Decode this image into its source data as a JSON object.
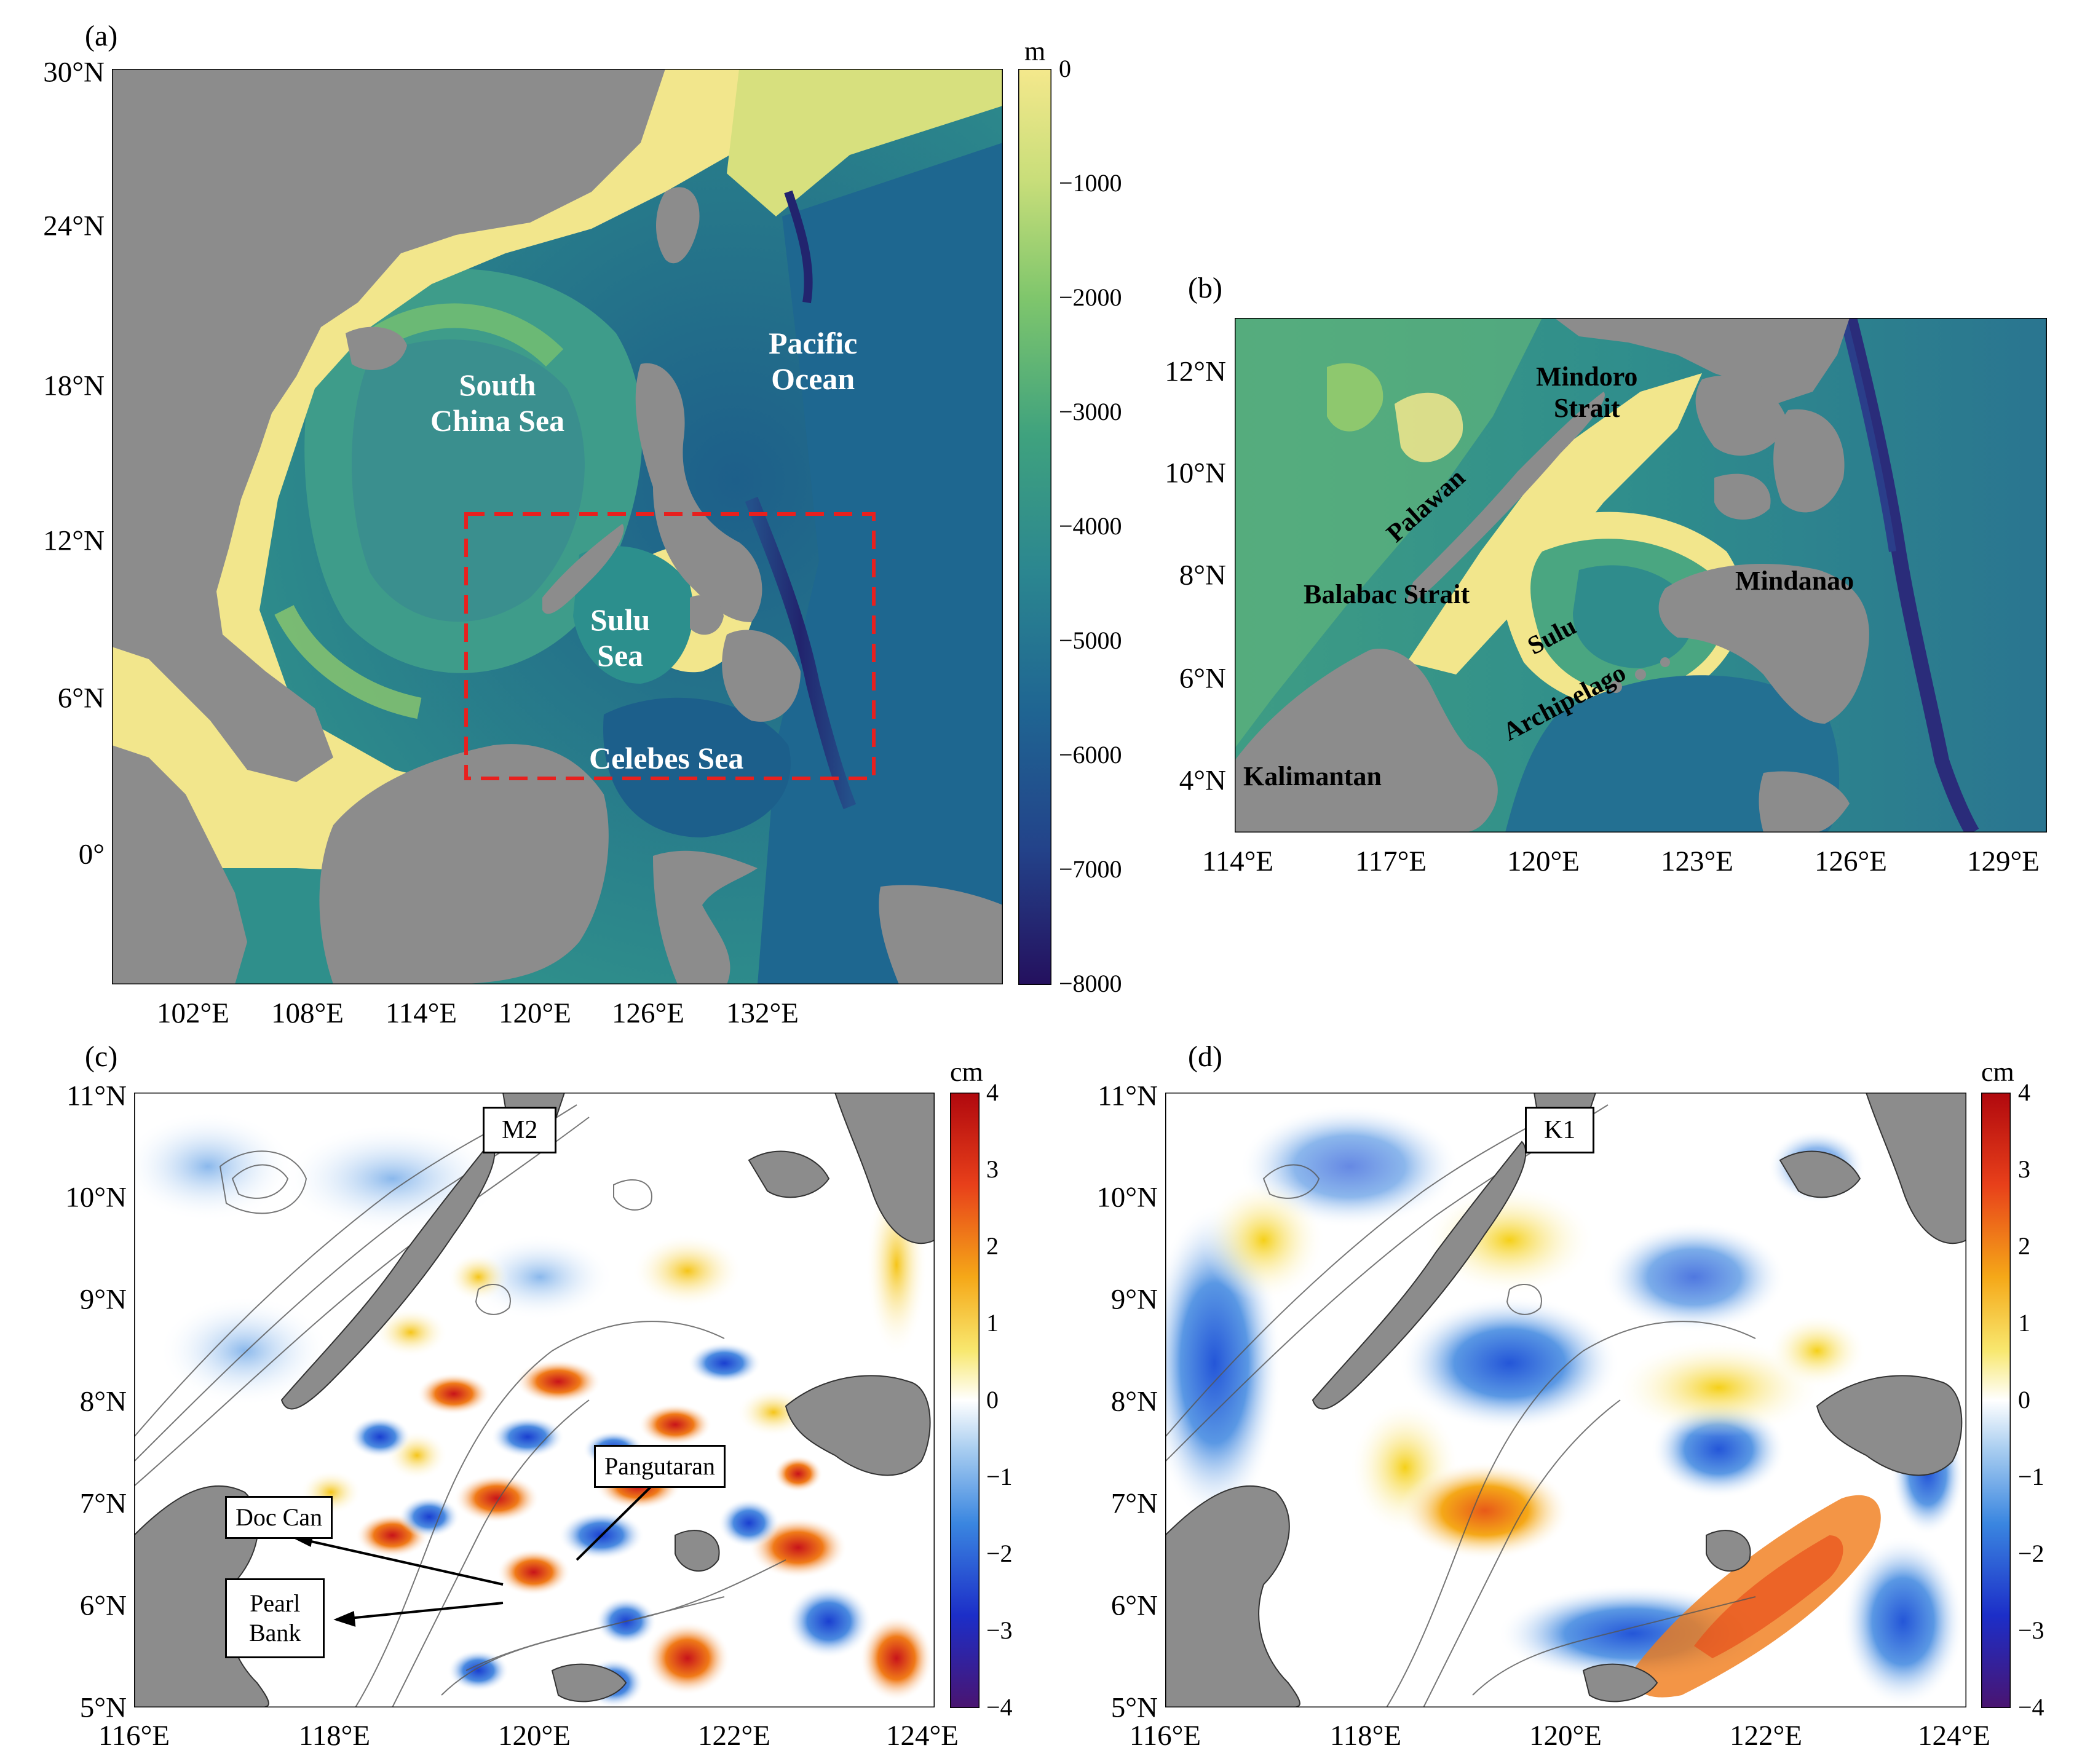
{
  "panels": {
    "a": {
      "label": "(a)",
      "lat_ticks": [
        "30°N",
        "24°N",
        "18°N",
        "12°N",
        "6°N",
        "0°"
      ],
      "lon_ticks": [
        "102°E",
        "108°E",
        "114°E",
        "120°E",
        "126°E",
        "132°E"
      ],
      "colorbar": {
        "unit": "m",
        "ticks": [
          "0",
          "−1000",
          "−2000",
          "−3000",
          "−4000",
          "−5000",
          "−6000",
          "−7000",
          "−8000"
        ]
      },
      "labels": {
        "scs": "South\nChina Sea",
        "pacific": "Pacific\nOcean",
        "sulu": "Sulu\nSea",
        "celebes": "Celebes Sea"
      }
    },
    "b": {
      "label": "(b)",
      "lat_ticks": [
        "12°N",
        "10°N",
        "8°N",
        "6°N",
        "4°N"
      ],
      "lon_ticks": [
        "114°E",
        "117°E",
        "120°E",
        "123°E",
        "126°E",
        "129°E"
      ],
      "labels": {
        "mindoro": "Mindoro\nStrait",
        "palawan": "Palawan",
        "balabac": "Balabac Strait",
        "mindanao": "Mindanao",
        "sulu_arch_1": "Sulu",
        "sulu_arch_2": "Archipelago",
        "kalimantan": "Kalimantan"
      }
    },
    "c": {
      "label": "(c)",
      "lat_ticks": [
        "11°N",
        "10°N",
        "9°N",
        "8°N",
        "7°N",
        "6°N",
        "5°N"
      ],
      "lon_ticks": [
        "116°E",
        "118°E",
        "120°E",
        "122°E",
        "124°E"
      ],
      "colorbar": {
        "unit": "cm",
        "ticks": [
          "4",
          "3",
          "2",
          "1",
          "0",
          "−1",
          "−2",
          "−3",
          "−4"
        ]
      },
      "constituent": "M2",
      "callouts": {
        "pangutaran": "Pangutaran",
        "doc_can": "Doc Can",
        "pearl_bank": "Pearl\nBank"
      }
    },
    "d": {
      "label": "(d)",
      "lat_ticks": [
        "11°N",
        "10°N",
        "9°N",
        "8°N",
        "7°N",
        "6°N",
        "5°N"
      ],
      "lon_ticks": [
        "116°E",
        "118°E",
        "120°E",
        "122°E",
        "124°E"
      ],
      "colorbar": {
        "unit": "cm",
        "ticks": [
          "4",
          "3",
          "2",
          "1",
          "0",
          "−1",
          "−2",
          "−3",
          "−4"
        ]
      },
      "constituent": "K1"
    }
  },
  "colors": {
    "land": "#8c8c8c",
    "shallow": "#f2e68c",
    "deep": "#2a2c7a",
    "study_box": "#e8201e",
    "anomaly_pos": "#b80f14",
    "anomaly_neg": "#3a1a7a"
  }
}
